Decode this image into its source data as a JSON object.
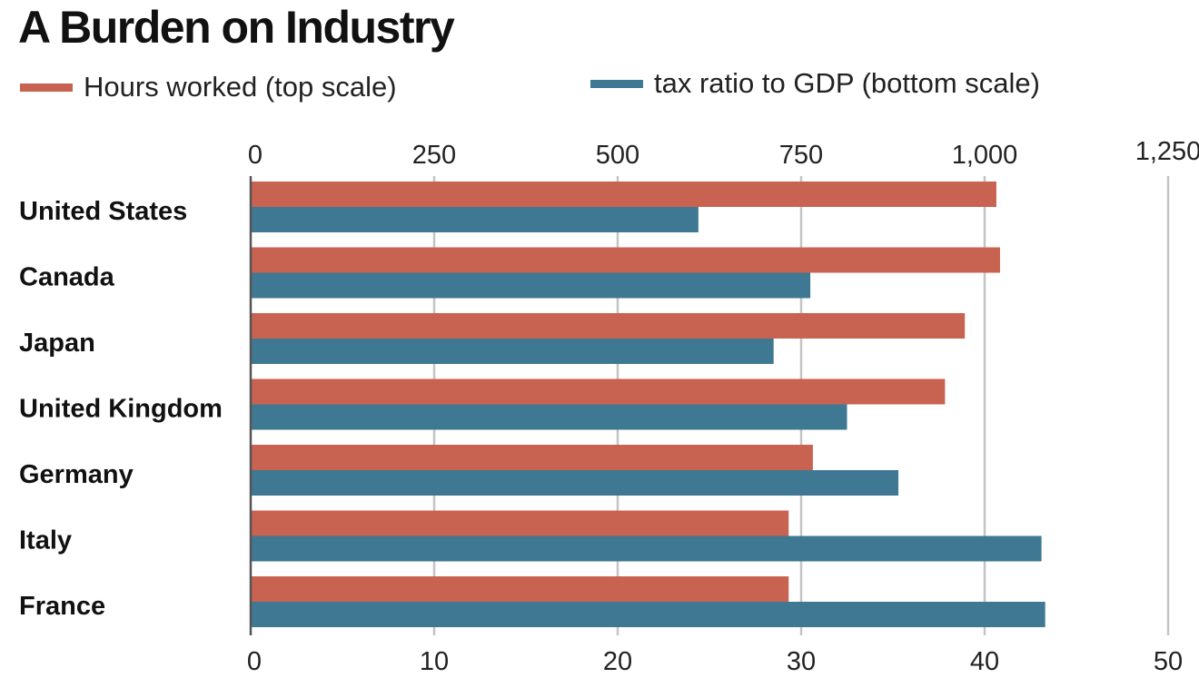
{
  "chart_data": {
    "type": "bar",
    "orientation": "horizontal",
    "title": "A Burden on Industry",
    "categories": [
      "United States",
      "Canada",
      "Japan",
      "United Kingdom",
      "Germany",
      "Italy",
      "France"
    ],
    "series": [
      {
        "name": "Hours worked (top scale)",
        "axis": "top",
        "color": "#c86251",
        "values": [
          1016,
          1021,
          973,
          946,
          766,
          733,
          733
        ]
      },
      {
        "name": "tax ratio to GDP (bottom scale)",
        "axis": "bottom",
        "color": "#3e7892",
        "values": [
          24.4,
          30.5,
          28.5,
          32.5,
          35.3,
          43.1,
          43.3
        ]
      }
    ],
    "top_axis": {
      "range": [
        0,
        1250
      ],
      "ticks": [
        0,
        250,
        500,
        750,
        1000,
        1250
      ],
      "tick_labels": [
        "0",
        "250",
        "500",
        "750",
        "1,000",
        "1,250"
      ]
    },
    "bottom_axis": {
      "range": [
        0,
        50
      ],
      "ticks": [
        0,
        10,
        20,
        30,
        40,
        50
      ],
      "tick_labels": [
        "0",
        "10",
        "20",
        "30",
        "40",
        "50"
      ]
    },
    "grid": true,
    "legend_position": "top"
  }
}
